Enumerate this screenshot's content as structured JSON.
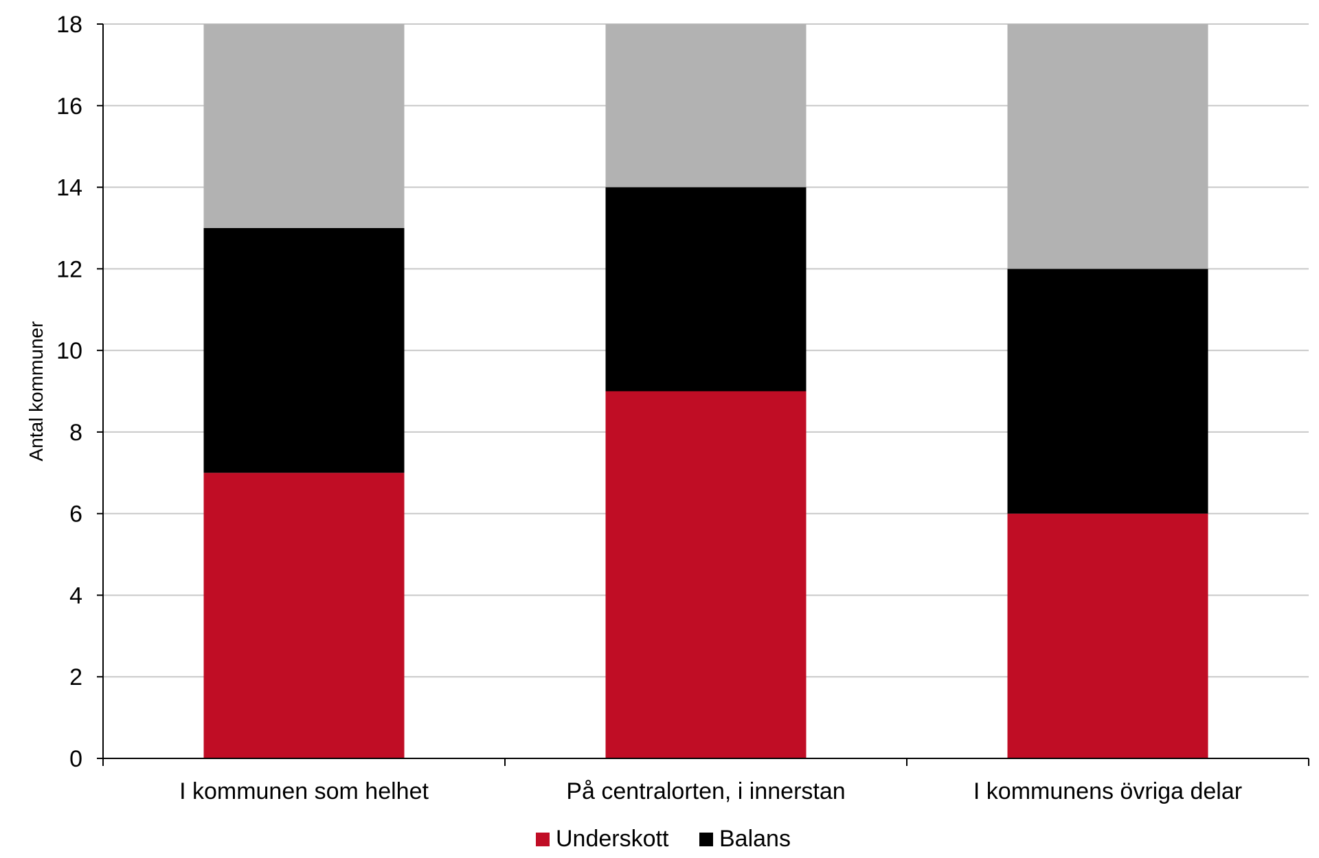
{
  "chart_data": {
    "type": "bar",
    "stacked": true,
    "title": "",
    "xlabel": "",
    "ylabel": "Antal kommuner",
    "ylim": [
      0,
      18
    ],
    "yticks": [
      0,
      2,
      4,
      6,
      8,
      10,
      12,
      14,
      16,
      18
    ],
    "grid": true,
    "legend_position": "bottom",
    "categories": [
      "I kommunen som helhet",
      "På centralorten, i innerstan",
      "I kommunens övriga delar"
    ],
    "series": [
      {
        "name": "Underskott",
        "color": "#c00d25",
        "values": [
          7,
          9,
          6
        ]
      },
      {
        "name": "Balans",
        "color": "#000000",
        "values": [
          6,
          5,
          6
        ]
      },
      {
        "color": "#b2b2b2",
        "values": [
          5,
          4,
          6
        ]
      }
    ],
    "legend": [
      {
        "label": "Underskott",
        "color": "#c00d25"
      },
      {
        "label": "Balans",
        "color": "#000000"
      }
    ]
  }
}
